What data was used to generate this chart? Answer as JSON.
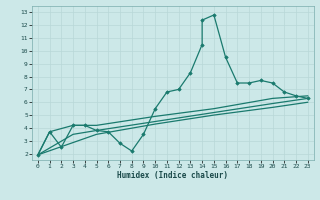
{
  "xlabel": "Humidex (Indice chaleur)",
  "xlim": [
    -0.5,
    23.5
  ],
  "ylim": [
    1.5,
    13.5
  ],
  "yticks": [
    2,
    3,
    4,
    5,
    6,
    7,
    8,
    9,
    10,
    11,
    12,
    13
  ],
  "xticks": [
    0,
    1,
    2,
    3,
    4,
    5,
    6,
    7,
    8,
    9,
    10,
    11,
    12,
    13,
    14,
    15,
    16,
    17,
    18,
    19,
    20,
    21,
    22,
    23
  ],
  "bg_color": "#cce8e8",
  "line_color": "#1a7a6e",
  "grid_color": "#b8d8d8",
  "series1": [
    [
      0,
      1.9
    ],
    [
      1,
      3.7
    ],
    [
      2,
      2.5
    ],
    [
      3,
      4.2
    ],
    [
      4,
      4.2
    ],
    [
      5,
      3.8
    ],
    [
      6,
      3.7
    ],
    [
      7,
      2.8
    ],
    [
      8,
      2.2
    ],
    [
      9,
      3.5
    ],
    [
      10,
      5.5
    ],
    [
      11,
      6.8
    ],
    [
      12,
      7.0
    ],
    [
      13,
      8.3
    ],
    [
      14,
      10.5
    ],
    [
      14,
      12.4
    ],
    [
      15,
      12.8
    ],
    [
      16,
      9.5
    ],
    [
      17,
      7.5
    ],
    [
      18,
      7.5
    ],
    [
      19,
      7.7
    ],
    [
      20,
      7.5
    ],
    [
      21,
      6.8
    ],
    [
      22,
      6.5
    ],
    [
      23,
      6.3
    ]
  ],
  "series2": [
    [
      0,
      1.9
    ],
    [
      1,
      3.7
    ],
    [
      3,
      4.2
    ],
    [
      5,
      4.2
    ],
    [
      10,
      4.9
    ],
    [
      15,
      5.5
    ],
    [
      20,
      6.3
    ],
    [
      23,
      6.5
    ]
  ],
  "series3": [
    [
      0,
      1.9
    ],
    [
      3,
      3.5
    ],
    [
      5,
      3.8
    ],
    [
      10,
      4.5
    ],
    [
      15,
      5.2
    ],
    [
      20,
      5.9
    ],
    [
      23,
      6.3
    ]
  ],
  "series4": [
    [
      0,
      1.9
    ],
    [
      5,
      3.5
    ],
    [
      10,
      4.3
    ],
    [
      15,
      5.0
    ],
    [
      20,
      5.6
    ],
    [
      23,
      6.0
    ]
  ]
}
